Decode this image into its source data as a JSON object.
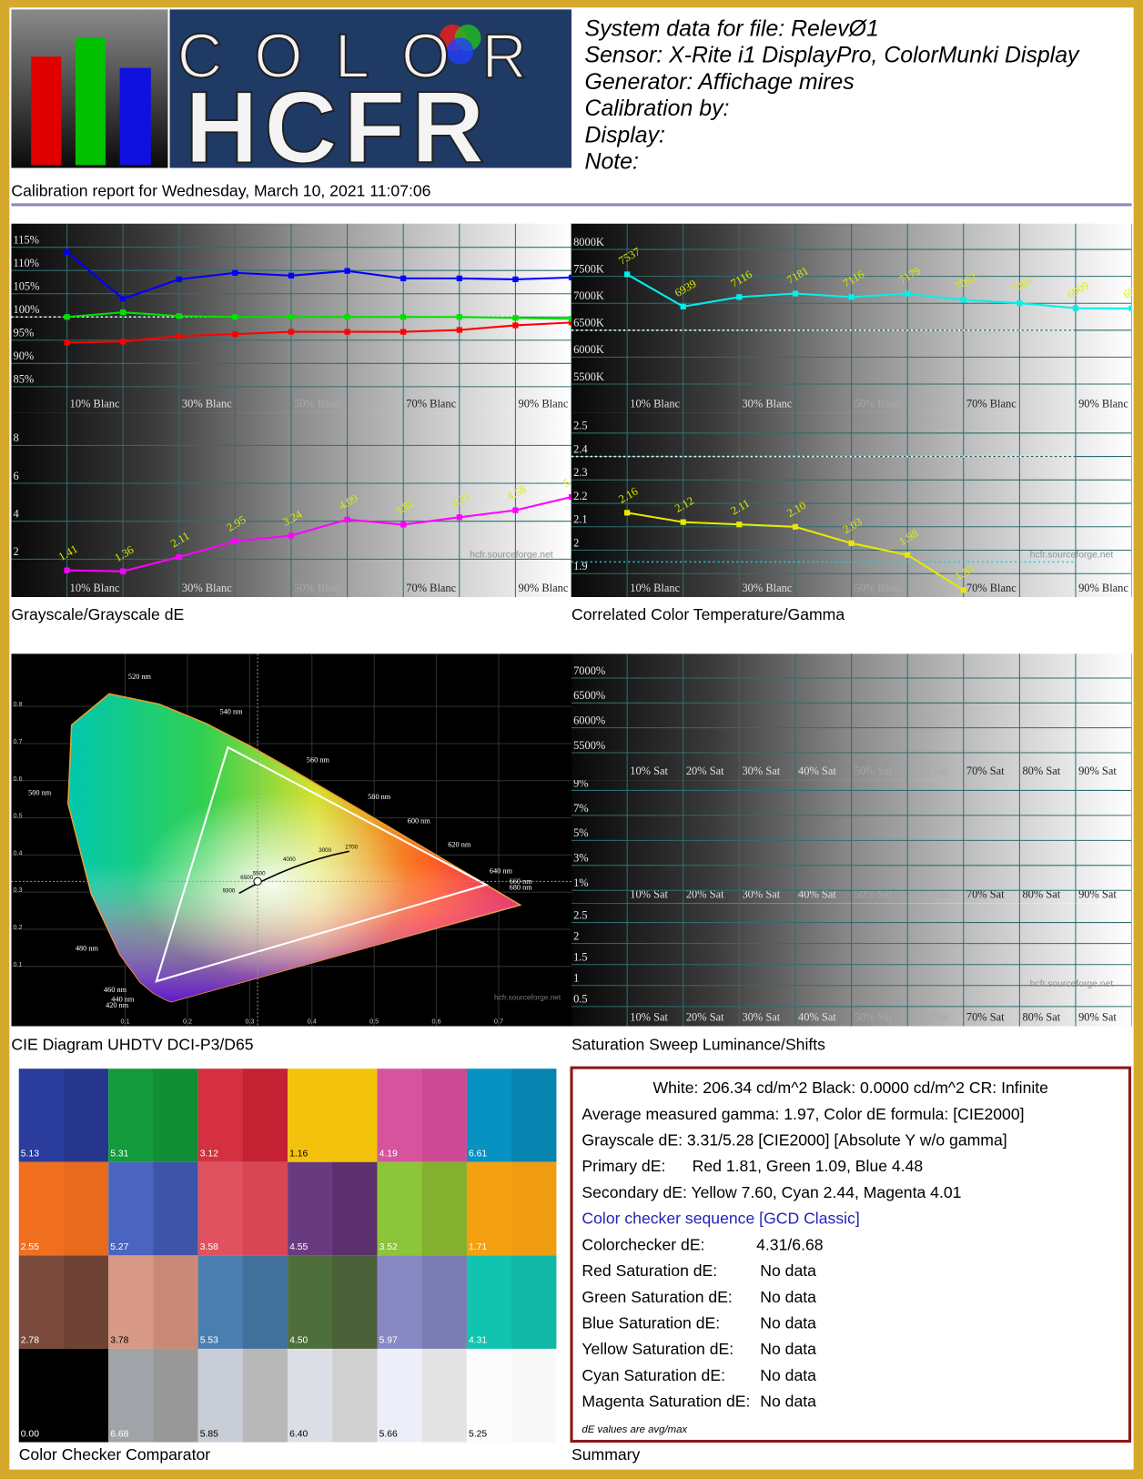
{
  "header": {
    "logo_top": "COLOR",
    "logo_bottom": "HCFR",
    "lines": [
      "System data for file: RelevØ1",
      "Sensor: X-Rite i1 DisplayPro, ColorMunki Display",
      "Generator: Affichage mires",
      "Calibration by:",
      "Display:",
      "Note:"
    ],
    "report": "Calibration report for Wednesday, March 10, 2021 11:07:06"
  },
  "chart_data": [
    {
      "type": "line",
      "title": "Grayscale/Grayscale dE",
      "categories": [
        "10% Blanc",
        null,
        "30% Blanc",
        null,
        "50% Blanc",
        null,
        "70% Blanc",
        null,
        "90% Blanc",
        null
      ],
      "ylim": [
        79.3,
        120.1
      ],
      "yticks": [
        {
          "value": 115,
          "label": "115%"
        },
        {
          "value": 110,
          "label": "110%"
        },
        {
          "value": 105,
          "label": "105%"
        },
        {
          "value": 100,
          "label": "100%"
        },
        {
          "value": 95,
          "label": "95%"
        },
        {
          "value": 90,
          "label": "90%"
        },
        {
          "value": 85,
          "label": "85%"
        }
      ],
      "references": [
        {
          "value": 100,
          "color": "#ffffff"
        }
      ],
      "series": [
        {
          "color": "#ff0000",
          "values": [
            94.5,
            94.7,
            95.9,
            96.3,
            96.8,
            96.8,
            96.8,
            97.2,
            98.2,
            98.8
          ]
        },
        {
          "color": "#00e000",
          "values": [
            100.0,
            101.0,
            100.2,
            100.0,
            100.0,
            100.0,
            100.0,
            100.0,
            99.8,
            99.6
          ]
        },
        {
          "color": "#0000ff",
          "values": [
            114.0,
            103.9,
            108.1,
            109.5,
            108.9,
            109.9,
            108.3,
            108.3,
            108.1,
            108.5
          ]
        }
      ]
    },
    {
      "type": "line",
      "categories": [
        "10% Blanc",
        null,
        "30% Blanc",
        null,
        "50% Blanc",
        null,
        "70% Blanc",
        null,
        "90% Blanc",
        null
      ],
      "ylim": [
        0,
        9.7
      ],
      "yticks": [
        2,
        4,
        6,
        8
      ],
      "data_labels": true,
      "watermark": "hcfr.sourceforge.net",
      "series": [
        {
          "color": "#ff00ff",
          "values": [
            1.41,
            1.36,
            2.11,
            2.95,
            3.24,
            4.09,
            3.82,
            4.21,
            4.58,
            5.28
          ]
        }
      ]
    },
    {
      "type": "line",
      "title": "Correlated Color Temperature/Gamma",
      "categories": [
        "10% Blanc",
        null,
        "30% Blanc",
        null,
        "50% Blanc",
        null,
        "70% Blanc",
        null,
        "90% Blanc",
        null
      ],
      "ylim": [
        4960,
        8480
      ],
      "yticks": [
        {
          "value": 8000,
          "label": "8000K"
        },
        {
          "value": 7500,
          "label": "7500K"
        },
        {
          "value": 7000,
          "label": "7000K"
        },
        {
          "value": 6500,
          "label": "6500K"
        },
        {
          "value": 6000,
          "label": "6000K"
        },
        {
          "value": 5500,
          "label": "5500K"
        }
      ],
      "data_labels": true,
      "references": [
        {
          "value": 6500,
          "color": "#ffffff"
        }
      ],
      "series": [
        {
          "color": "#00f0f0",
          "values": [
            7537,
            6939,
            7116,
            7181,
            7116,
            7179,
            7062,
            7003,
            6909,
            6906
          ]
        }
      ]
    },
    {
      "type": "line",
      "categories": [
        "10% Blanc",
        null,
        "30% Blanc",
        null,
        "50% Blanc",
        null,
        "70% Blanc",
        null,
        "90% Blanc",
        null
      ],
      "ylim": [
        1.8,
        2.585
      ],
      "yticks": [
        2.5,
        2.4,
        2.3,
        2.2,
        2.1,
        2,
        1.9
      ],
      "data_labels": true,
      "watermark": "hcfr.sourceforge.net",
      "references": [
        {
          "value": 2.4,
          "color": "#ffffff"
        },
        {
          "value": 1.95,
          "color": "#00d8e8"
        }
      ],
      "series": [
        {
          "color": "#e8e800",
          "values": [
            2.16,
            2.12,
            2.11,
            2.1,
            2.03,
            1.98,
            1.83,
            null,
            null,
            null
          ],
          "value_labels": [
            "2.16",
            "2.12",
            "2.11",
            "2.10",
            "2.03",
            "1.98",
            "1.83",
            null,
            null,
            null
          ]
        }
      ]
    },
    {
      "type": "cie",
      "title": "CIE Diagram UHDTV DCI-P3/D65",
      "xlim": [
        -0.083,
        0.817
      ],
      "ylim": [
        -0.061,
        0.942
      ],
      "xticks": [
        0.1,
        0.2,
        0.3,
        0.4,
        0.5,
        0.6,
        0.7
      ],
      "yticks": [
        0.1,
        0.2,
        0.3,
        0.4,
        0.5,
        0.6,
        0.7,
        0.8
      ],
      "gamut": {
        "x": [
          0.68,
          0.265,
          0.15
        ],
        "y": [
          0.32,
          0.69,
          0.06
        ]
      },
      "white": {
        "x": [
          0.3127
        ],
        "y": [
          0.329
        ]
      },
      "wavelength_labels": [
        "520 nm",
        "540 nm",
        "560 nm",
        "580 nm",
        "600 nm",
        "620 nm",
        "640 nm",
        "660 nm",
        "680 nm",
        "500 nm",
        "480 nm",
        "460 nm",
        "440 nm",
        "420 nm"
      ],
      "cct_labels": [
        "9300",
        "6500",
        "5500",
        "4000",
        "3000",
        "2700"
      ],
      "watermark": "hcfr.sourceforge.net"
    },
    {
      "type": "line",
      "title": "Saturation Sweep Luminance/Shifts",
      "categories": [
        "10% Sat",
        "20% Sat",
        "30% Sat",
        "40% Sat",
        "50% Sat",
        "60% Sat",
        "70% Sat",
        "80% Sat",
        "90% Sat",
        null
      ],
      "ylim": [
        4950,
        7490
      ],
      "yticks": [
        {
          "value": 7000,
          "label": "7000%"
        },
        {
          "value": 6500,
          "label": "6500%"
        },
        {
          "value": 6000,
          "label": "6000%"
        },
        {
          "value": 5500,
          "label": "5500%"
        }
      ]
    },
    {
      "type": "line",
      "categories": [
        "10% Sat",
        "20% Sat",
        "30% Sat",
        "40% Sat",
        "50% Sat",
        "60% Sat",
        "70% Sat",
        "80% Sat",
        "90% Sat",
        null
      ],
      "ylim": [
        -0.06,
        9.83
      ],
      "yticks": [
        {
          "value": 9,
          "label": "9%"
        },
        {
          "value": 7,
          "label": "7%"
        },
        {
          "value": 5,
          "label": "5%"
        },
        {
          "value": 3,
          "label": "3%"
        },
        {
          "value": 1,
          "label": "1%"
        }
      ]
    },
    {
      "type": "line",
      "categories": [
        "10% Sat",
        "20% Sat",
        "30% Sat",
        "40% Sat",
        "50% Sat",
        "60% Sat",
        "70% Sat",
        "80% Sat",
        "90% Sat",
        null
      ],
      "ylim": [
        0.03,
        2.95
      ],
      "yticks": [
        2.5,
        2,
        1.5,
        1,
        0.5
      ],
      "watermark": "hcfr.sourceforge.net"
    },
    {
      "type": "swatch",
      "title": "Color Checker Comparator",
      "colors": [
        [
          "#2a3d9c",
          "#26368c"
        ],
        [
          "#139a3c",
          "#0f8e36"
        ],
        [
          "#d4303f",
          "#c42233"
        ],
        [
          "#f4c20d",
          "#f2c30a"
        ],
        [
          "#d6549e",
          "#cc4a93"
        ],
        [
          "#0892c4",
          "#0884b0"
        ],
        [
          "#f07020",
          "#e86a1c"
        ],
        [
          "#4a64c0",
          "#3e54a8"
        ],
        [
          "#e0525f",
          "#d84656"
        ],
        [
          "#6a3a7e",
          "#5c306c"
        ],
        [
          "#8cc43a",
          "#84b030"
        ],
        [
          "#f4a010",
          "#f09c10"
        ],
        [
          "#7a4a3c",
          "#6e4234"
        ],
        [
          "#d89a86",
          "#c88a76"
        ],
        [
          "#4a7eb0",
          "#42709c"
        ],
        [
          "#4e6e3c",
          "#4a6038"
        ],
        [
          "#8888c4",
          "#7c7cb4"
        ],
        [
          "#10c4b0",
          "#12b8a6"
        ],
        [
          "#000000",
          "#000000"
        ],
        [
          "#a0a4a8",
          "#989898"
        ],
        [
          "#c8ccd4",
          "#b8b8b8"
        ],
        [
          "#dcdee6",
          "#d0d0d0"
        ],
        [
          "#eceff8",
          "#e4e4e4"
        ],
        [
          "#fcfcfc",
          "#f8f8f8"
        ]
      ],
      "values": [
        5.13,
        5.31,
        3.12,
        1.16,
        4.19,
        6.61,
        2.55,
        5.27,
        3.58,
        4.55,
        3.52,
        1.71,
        2.78,
        3.78,
        5.53,
        4.5,
        5.97,
        4.31,
        0,
        6.68,
        5.85,
        6.4,
        5.66,
        5.25
      ],
      "value_labels": [
        "5.13",
        "5.31",
        "3.12",
        "1.16",
        "4.19",
        "6.61",
        "2.55",
        "5.27",
        "3.58",
        "4.55",
        "3.52",
        "1.71",
        "2.78",
        "3.78",
        "5.53",
        "4.50",
        "5.97",
        "4.31",
        "0.00",
        "6.68",
        "5.85",
        "6.40",
        "5.66",
        "5.25"
      ]
    }
  ],
  "summary": {
    "title": "Summary",
    "lines": [
      [
        "White: 206.34 cd/m^2 Black: 0.0000 cd/m^2 CR: Infinite"
      ],
      [
        "Average measured gamma: 1.97, Color dE formula:  [CIE2000]"
      ],
      [
        "Grayscale dE: 3.31/5.28 [CIE2000] [Absolute Y w/o gamma]"
      ],
      [
        "Primary dE:",
        "Red 1.81, Green 1.09, Blue 4.48"
      ],
      [
        "Secondary dE: Yellow 7.60, Cyan 2.44, Magenta 4.01"
      ],
      [
        "Color checker sequence [GCD Classic]"
      ],
      [
        "Colorchecker dE:",
        "4.31/6.68"
      ],
      [
        "Red Saturation dE:",
        "No data"
      ],
      [
        "Green Saturation dE:",
        "No data"
      ],
      [
        "Blue Saturation dE:",
        "No data"
      ],
      [
        "Yellow Saturation dE:",
        "No data"
      ],
      [
        "Cyan Saturation dE:",
        "No data"
      ],
      [
        "Magenta Saturation dE:",
        "No data"
      ]
    ],
    "note": "dE values are avg/max"
  }
}
